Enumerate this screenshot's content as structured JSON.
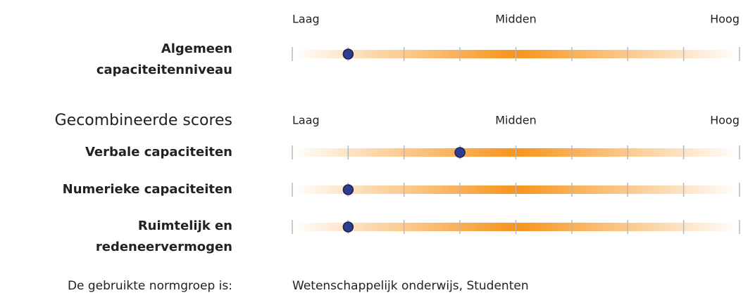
{
  "scale": {
    "labels": [
      "Laag",
      "Midden",
      "Hoog"
    ],
    "min": 1,
    "max": 9,
    "ticks": [
      1,
      2,
      3,
      4,
      5,
      6,
      7,
      8,
      9
    ]
  },
  "overall": {
    "label": [
      "Algemeen",
      "capaciteitenniveau"
    ],
    "score": 2
  },
  "combined": {
    "heading": "Gecombineerde scores",
    "rows": [
      {
        "label": [
          "Verbale capaciteiten"
        ],
        "score": 4
      },
      {
        "label": [
          "Numerieke capaciteiten"
        ],
        "score": 2
      },
      {
        "label": [
          "Ruimtelijk en",
          "redeneervermogen"
        ],
        "score": 2
      }
    ]
  },
  "footer": {
    "label": "De gebruikte normgroep is:",
    "value": "Wetenschappelijk onderwijs, Studenten"
  }
}
